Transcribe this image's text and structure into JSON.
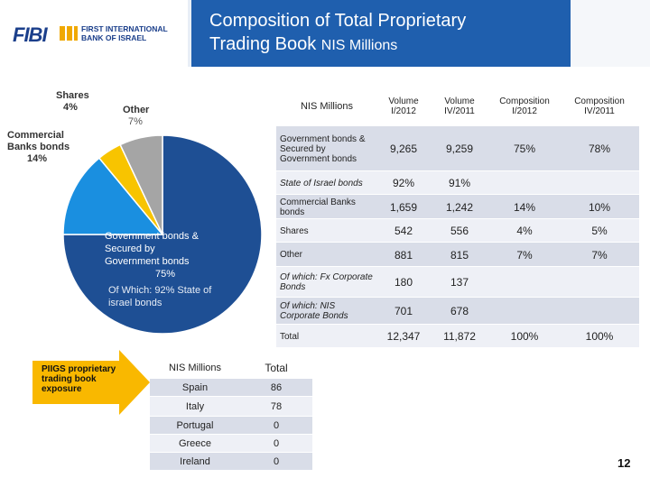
{
  "header": {
    "logo_name": "FIBI",
    "logo_line1": "FIRST INTERNATIONAL",
    "logo_line2": "BANK OF ISRAEL",
    "title_line1": "Composition of Total Proprietary",
    "title_line2": "Trading Book",
    "title_unit": "NIS Millions"
  },
  "colors": {
    "header_blue": "#1f5fae",
    "pie_navy": "#1e4f94",
    "pie_sky": "#1a8fe0",
    "pie_yellow": "#f8c400",
    "pie_gray": "#a5a5a5",
    "row_light": "#eef0f6",
    "row_dark": "#d9dde8"
  },
  "chart_data": {
    "type": "pie",
    "slices": [
      {
        "name": "Government bonds & Secured by Government bonds",
        "value": 75
      },
      {
        "name": "Commercial Banks bonds",
        "value": 14
      },
      {
        "name": "Shares",
        "value": 4
      },
      {
        "name": "Other",
        "value": 7
      }
    ],
    "labels": {
      "shares": "Shares",
      "shares_pct": "4%",
      "other": "Other",
      "other_pct": "7%",
      "commercial_1": "Commercial",
      "commercial_2": "Banks bonds",
      "commercial_pct": "14%",
      "gov_1": "Government bonds &",
      "gov_2": "Secured by",
      "gov_3": "Government bonds",
      "gov_pct": "75%",
      "gov_note_1": "Of Which:  92% State of",
      "gov_note_2": "israel bonds"
    }
  },
  "table": {
    "headers": [
      "NIS Millions",
      "Volume I/2012",
      "Volume IV/2011",
      "Composition I/2012",
      "Composition IV/2011"
    ],
    "rows": [
      [
        "Government bonds & Secured by Government bonds",
        "9,265",
        "9,259",
        "75%",
        "78%"
      ],
      [
        "State of Israel bonds",
        "92%",
        "91%",
        "",
        ""
      ],
      [
        "Commercial Banks bonds",
        "1,659",
        "1,242",
        "14%",
        "10%"
      ],
      [
        "Shares",
        "542",
        "556",
        "4%",
        "5%"
      ],
      [
        "Other",
        "881",
        "815",
        "7%",
        "7%"
      ],
      [
        "Of which: Fx Corporate Bonds",
        "180",
        "137",
        "",
        ""
      ],
      [
        "Of which: NIS Corporate Bonds",
        "701",
        "678",
        "",
        ""
      ],
      [
        "Total",
        "12,347",
        "11,872",
        "100%",
        "100%"
      ]
    ]
  },
  "piigs": {
    "arrow_text": "PIIGS proprietary trading book exposure",
    "headers": [
      "NIS Millions",
      "Total"
    ],
    "rows": [
      [
        "Spain",
        "86"
      ],
      [
        "Italy",
        "78"
      ],
      [
        "Portugal",
        "0"
      ],
      [
        "Greece",
        "0"
      ],
      [
        "Ireland",
        "0"
      ]
    ]
  },
  "page_number": "12"
}
